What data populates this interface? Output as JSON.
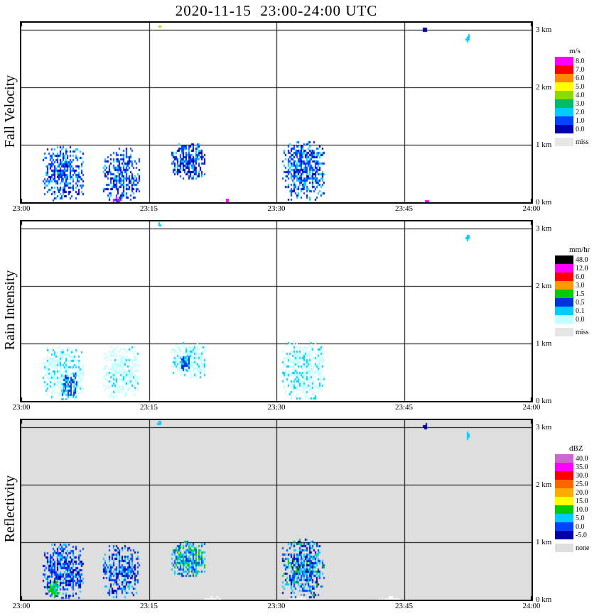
{
  "title": "2020-11-15  23:00-24:00 UTC",
  "chart_data": {
    "type": "heatmap",
    "description": "Time-height profiles of Fall Velocity, Rain Intensity and Reflectivity, 23:00-24:00 UTC on 2020-11-15",
    "x_range_minutes": [
      0,
      60
    ],
    "y_range_km": [
      0,
      3.12
    ],
    "grid": true,
    "legend_position": "right",
    "x_ticks": [
      {
        "label": "23:00",
        "minute": 0
      },
      {
        "label": "23:15",
        "minute": 15
      },
      {
        "label": "23:30",
        "minute": 30
      },
      {
        "label": "23:45",
        "minute": 45
      },
      {
        "label": "24:00",
        "minute": 60
      }
    ],
    "y_ticks": [
      {
        "label": "3 km",
        "km": 3
      },
      {
        "label": "2 km",
        "km": 2
      },
      {
        "label": "1 km",
        "km": 1
      },
      {
        "label": "0 km",
        "km": 0
      }
    ],
    "panels": [
      {
        "name": "fall-velocity",
        "ylabel": "Fall Velocity",
        "legend_unit": "m/s",
        "plot_background": "#ffffff",
        "legend": [
          {
            "value": "8.0",
            "color": "#ff00ff"
          },
          {
            "value": "7.0",
            "color": "#ff0000"
          },
          {
            "value": "6.0",
            "color": "#ff8800"
          },
          {
            "value": "5.0",
            "color": "#ffff00"
          },
          {
            "value": "4.0",
            "color": "#88dd00"
          },
          {
            "value": "3.0",
            "color": "#00bb66"
          },
          {
            "value": "2.0",
            "color": "#00ccff"
          },
          {
            "value": "1.0",
            "color": "#0044ff"
          },
          {
            "value": "0.0",
            "color": "#0000aa"
          }
        ],
        "missing": {
          "label": "miss",
          "color": "#e6e6e6"
        },
        "echo_regions": [
          {
            "t": [
              2.5,
              7.2
            ],
            "h": [
              0.05,
              0.98
            ],
            "density": 0.55,
            "colors": [
              [
                "#0044ff",
                5
              ],
              [
                "#00ccff",
                3
              ],
              [
                "#0000aa",
                3
              ]
            ]
          },
          {
            "t": [
              9.6,
              13.8
            ],
            "h": [
              0.05,
              0.95
            ],
            "density": 0.5,
            "colors": [
              [
                "#0044ff",
                5
              ],
              [
                "#00ccff",
                2
              ],
              [
                "#0000aa",
                2
              ]
            ]
          },
          {
            "t": [
              10.8,
              11.9
            ],
            "h": [
              0.0,
              0.14
            ],
            "density": 0.85,
            "colors": [
              [
                "#ff00ff",
                2
              ],
              [
                "#0044ff",
                1
              ]
            ]
          },
          {
            "t": [
              17.6,
              21.6
            ],
            "h": [
              0.42,
              1.02
            ],
            "density": 0.68,
            "colors": [
              [
                "#0000aa",
                4
              ],
              [
                "#0044ff",
                4
              ],
              [
                "#00ccff",
                2
              ]
            ]
          },
          {
            "t": [
              30.7,
              35.6
            ],
            "h": [
              0.05,
              1.06
            ],
            "density": 0.55,
            "colors": [
              [
                "#0044ff",
                4
              ],
              [
                "#00ccff",
                3
              ],
              [
                "#0000aa",
                3
              ]
            ]
          },
          {
            "t": [
              16.0,
              16.4
            ],
            "h": [
              3.04,
              3.11
            ],
            "density": 1,
            "colors": [
              [
                "#aadd00",
                1
              ]
            ]
          },
          {
            "t": [
              47.2,
              47.7
            ],
            "h": [
              2.97,
              3.07
            ],
            "density": 1,
            "colors": [
              [
                "#0000aa",
                1
              ]
            ]
          },
          {
            "t": [
              52.2,
              52.7
            ],
            "h": [
              2.8,
              2.92
            ],
            "density": 1,
            "colors": [
              [
                "#00ccff",
                1
              ]
            ]
          },
          {
            "t": [
              23.9,
              24.3
            ],
            "h": [
              0.0,
              0.06
            ],
            "density": 1,
            "colors": [
              [
                "#ff00ff",
                1
              ]
            ]
          },
          {
            "t": [
              47.5,
              47.9
            ],
            "h": [
              0.0,
              0.07
            ],
            "density": 1,
            "colors": [
              [
                "#ff00ff",
                1
              ]
            ]
          }
        ]
      },
      {
        "name": "rain-intensity",
        "ylabel": "Rain Intensity",
        "legend_unit": "mm/hr",
        "plot_background": "#ffffff",
        "legend": [
          {
            "value": "48.0",
            "color": "#000000"
          },
          {
            "value": "12.0",
            "color": "#ff00ff"
          },
          {
            "value": "6.0",
            "color": "#ff0000"
          },
          {
            "value": "3.0",
            "color": "#ff9900"
          },
          {
            "value": "1.5",
            "color": "#00cc00"
          },
          {
            "value": "0.5",
            "color": "#0033dd"
          },
          {
            "value": "0.1",
            "color": "#00ccff"
          },
          {
            "value": "0.0",
            "color": "#c0ffff"
          }
        ],
        "missing": {
          "label": "miss",
          "color": "#e6e6e6"
        },
        "echo_regions": [
          {
            "t": [
              2.5,
              7.2
            ],
            "h": [
              0.05,
              0.98
            ],
            "density": 0.55,
            "colors": [
              [
                "#c0ffff",
                6
              ],
              [
                "#00ccff",
                2
              ]
            ]
          },
          {
            "t": [
              4.8,
              6.6
            ],
            "h": [
              0.08,
              0.5
            ],
            "density": 0.75,
            "colors": [
              [
                "#0033dd",
                3
              ],
              [
                "#00ccff",
                1
              ],
              [
                "#c0ffff",
                1
              ]
            ]
          },
          {
            "t": [
              9.6,
              13.8
            ],
            "h": [
              0.05,
              0.95
            ],
            "density": 0.5,
            "colors": [
              [
                "#c0ffff",
                7
              ],
              [
                "#00ccff",
                1
              ]
            ]
          },
          {
            "t": [
              17.6,
              21.6
            ],
            "h": [
              0.42,
              1.02
            ],
            "density": 0.68,
            "colors": [
              [
                "#c0ffff",
                5
              ],
              [
                "#00ccff",
                2
              ]
            ]
          },
          {
            "t": [
              18.6,
              19.7
            ],
            "h": [
              0.55,
              0.82
            ],
            "density": 0.8,
            "colors": [
              [
                "#0033dd",
                2
              ],
              [
                "#00ccff",
                1
              ]
            ]
          },
          {
            "t": [
              30.7,
              35.6
            ],
            "h": [
              0.05,
              1.06
            ],
            "density": 0.55,
            "colors": [
              [
                "#c0ffff",
                6
              ],
              [
                "#00ccff",
                2
              ]
            ]
          },
          {
            "t": [
              16.0,
              16.4
            ],
            "h": [
              3.04,
              3.11
            ],
            "density": 1,
            "colors": [
              [
                "#00ccff",
                1
              ]
            ]
          },
          {
            "t": [
              52.2,
              52.7
            ],
            "h": [
              2.8,
              2.92
            ],
            "density": 1,
            "colors": [
              [
                "#00ccff",
                1
              ]
            ]
          }
        ]
      },
      {
        "name": "reflectivity",
        "ylabel": "Reflectivity",
        "legend_unit": "dBZ",
        "plot_background": "#dedede",
        "legend": [
          {
            "value": "40.0",
            "color": "#cc66cc"
          },
          {
            "value": "35.0",
            "color": "#ff00ff"
          },
          {
            "value": "30.0",
            "color": "#ff0000"
          },
          {
            "value": "25.0",
            "color": "#ff6600"
          },
          {
            "value": "20.0",
            "color": "#ffaa00"
          },
          {
            "value": "15.0",
            "color": "#ffff00"
          },
          {
            "value": "10.0",
            "color": "#00cc00"
          },
          {
            "value": "5.0",
            "color": "#00ccff"
          },
          {
            "value": "0.0",
            "color": "#0044ff"
          },
          {
            "value": "-5.0",
            "color": "#0000aa"
          }
        ],
        "missing": {
          "label": "none",
          "color": "#dedede"
        },
        "echo_regions": [
          {
            "t": [
              2.5,
              7.2
            ],
            "h": [
              0.05,
              0.98
            ],
            "density": 0.6,
            "colors": [
              [
                "#0044ff",
                4
              ],
              [
                "#0000aa",
                3
              ],
              [
                "#00ccff",
                2
              ]
            ]
          },
          {
            "t": [
              3.2,
              4.4
            ],
            "h": [
              0.06,
              0.36
            ],
            "density": 0.8,
            "colors": [
              [
                "#00cc00",
                2
              ],
              [
                "#00ccff",
                1
              ]
            ]
          },
          {
            "t": [
              9.6,
              13.8
            ],
            "h": [
              0.05,
              0.95
            ],
            "density": 0.55,
            "colors": [
              [
                "#0044ff",
                4
              ],
              [
                "#0000aa",
                2
              ],
              [
                "#00ccff",
                2
              ]
            ]
          },
          {
            "t": [
              17.6,
              21.6
            ],
            "h": [
              0.42,
              1.02
            ],
            "density": 0.72,
            "colors": [
              [
                "#00ccff",
                4
              ],
              [
                "#00cc00",
                2
              ],
              [
                "#0044ff",
                3
              ]
            ]
          },
          {
            "t": [
              30.7,
              35.6
            ],
            "h": [
              0.05,
              1.06
            ],
            "density": 0.6,
            "colors": [
              [
                "#0044ff",
                3
              ],
              [
                "#00ccff",
                3
              ],
              [
                "#00cc00",
                1
              ],
              [
                "#0000aa",
                2
              ]
            ]
          },
          {
            "t": [
              21.5,
              23.4
            ],
            "h": [
              0.0,
              0.06
            ],
            "density": 1,
            "colors": [
              [
                "#ffffff",
                1
              ]
            ]
          },
          {
            "t": [
              31.5,
              33.4
            ],
            "h": [
              0.0,
              0.06
            ],
            "density": 1,
            "colors": [
              [
                "#ffffff",
                1
              ]
            ]
          },
          {
            "t": [
              42.0,
              44.4
            ],
            "h": [
              0.0,
              0.06
            ],
            "density": 1,
            "colors": [
              [
                "#ffffff",
                1
              ]
            ]
          },
          {
            "t": [
              16.0,
              16.4
            ],
            "h": [
              3.04,
              3.11
            ],
            "density": 1,
            "colors": [
              [
                "#00ccff",
                1
              ]
            ]
          },
          {
            "t": [
              47.2,
              47.7
            ],
            "h": [
              2.97,
              3.07
            ],
            "density": 1,
            "colors": [
              [
                "#0000aa",
                1
              ]
            ]
          },
          {
            "t": [
              52.2,
              52.7
            ],
            "h": [
              2.8,
              2.92
            ],
            "density": 1,
            "colors": [
              [
                "#00ccff",
                1
              ]
            ]
          }
        ]
      }
    ]
  }
}
